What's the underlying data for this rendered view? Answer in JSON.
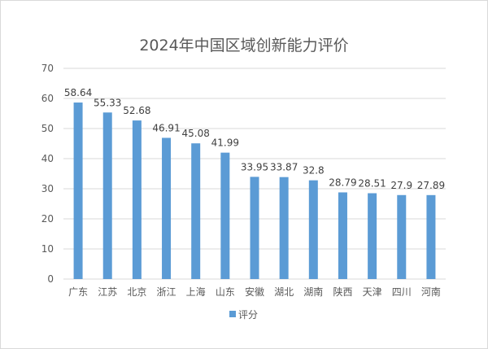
{
  "chart_data": {
    "type": "bar",
    "title": "2024年中国区域创新能力评价",
    "xlabel": "",
    "ylabel": "",
    "categories": [
      "广东",
      "江苏",
      "北京",
      "浙江",
      "上海",
      "山东",
      "安徽",
      "湖北",
      "湖南",
      "陕西",
      "天津",
      "四川",
      "河南"
    ],
    "series": [
      {
        "name": "评分",
        "color": "#5b9bd5",
        "values": [
          58.64,
          55.33,
          52.68,
          46.91,
          45.08,
          41.99,
          33.95,
          33.87,
          32.8,
          28.79,
          28.51,
          27.9,
          27.89
        ]
      }
    ],
    "value_labels": [
      "58.64",
      "55.33",
      "52.68",
      "46.91",
      "45.08",
      "41.99",
      "33.95",
      "33.87",
      "32.8",
      "28.79",
      "28.51",
      "27.9",
      "27.89"
    ],
    "ylim": [
      0,
      70
    ],
    "yticks": [
      0,
      10,
      20,
      30,
      40,
      50,
      60,
      70
    ],
    "grid": true,
    "legend_position": "bottom"
  }
}
